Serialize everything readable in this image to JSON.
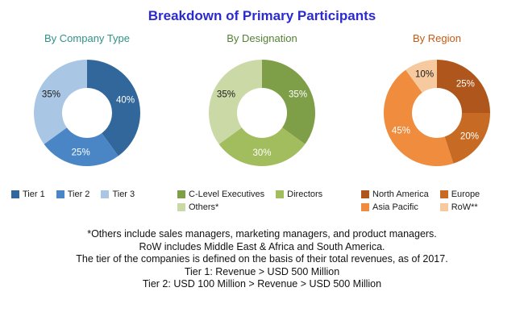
{
  "page_title": "Breakdown of Primary Participants",
  "page_title_color": "#2b2bd0",
  "chart_data": [
    {
      "type": "pie",
      "donut": true,
      "title": "By Company Type",
      "title_color": "#2f9288",
      "legend_position": "bottom",
      "legend_columns": 3,
      "slices": [
        {
          "label": "Tier 1",
          "value": 40,
          "color": "#31679b",
          "text_color": "#ffffff"
        },
        {
          "label": "Tier 2",
          "value": 25,
          "color": "#4a86c5",
          "text_color": "#ffffff"
        },
        {
          "label": "Tier 3",
          "value": 35,
          "color": "#a9c6e4",
          "text_color": "#1a1a1a"
        }
      ]
    },
    {
      "type": "pie",
      "donut": true,
      "title": "By Designation",
      "title_color": "#538135",
      "legend_position": "bottom",
      "legend_columns": 2,
      "slices": [
        {
          "label": "C-Level Executives",
          "value": 35,
          "color": "#7f9e48",
          "text_color": "#ffffff"
        },
        {
          "label": "Directors",
          "value": 30,
          "color": "#a2bd5e",
          "text_color": "#ffffff"
        },
        {
          "label": "Others*",
          "value": 35,
          "color": "#cbd9a6",
          "text_color": "#1a1a1a"
        }
      ]
    },
    {
      "type": "pie",
      "donut": true,
      "title": "By Region",
      "title_color": "#c55a11",
      "legend_position": "bottom",
      "legend_columns": 2,
      "slices": [
        {
          "label": "North America",
          "value": 25,
          "color": "#ae561b",
          "text_color": "#ffffff"
        },
        {
          "label": "Europe",
          "value": 20,
          "color": "#c76b24",
          "text_color": "#ffffff"
        },
        {
          "label": "Asia Pacific",
          "value": 45,
          "color": "#ef8c3d",
          "text_color": "#ffffff"
        },
        {
          "label": "RoW**",
          "value": 10,
          "color": "#f7c99f",
          "text_color": "#1a1a1a"
        }
      ]
    }
  ],
  "footnotes": [
    "*Others include sales managers, marketing managers, and product managers.",
    "RoW includes Middle East & Africa and South America.",
    "The tier of the companies is defined on the basis of their total revenues, as of 2017.",
    "Tier 1: Revenue > USD 500 Million",
    "Tier 2: USD 100 Million > Revenue > USD 500 Million"
  ]
}
